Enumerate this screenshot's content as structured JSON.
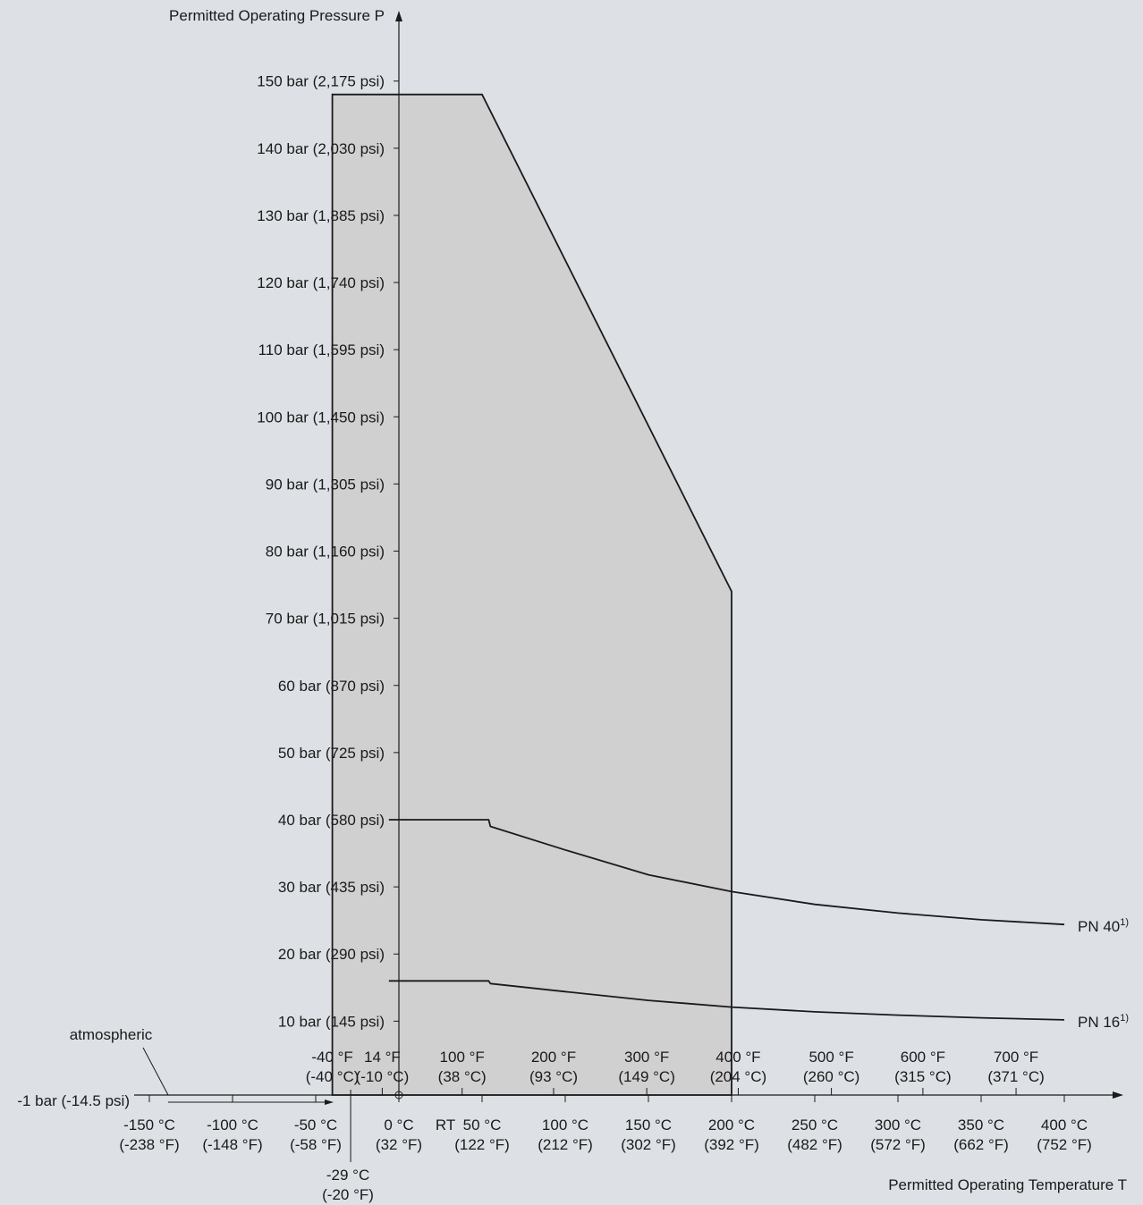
{
  "chart_data": {
    "type": "area",
    "title": "",
    "ylabel": "Permitted Operating Pressure P",
    "xlabel": "Permitted Operating Temperature T",
    "xlim": [
      -150,
      400
    ],
    "ylim": [
      -1,
      150
    ],
    "y_ticks": [
      {
        "value": 150,
        "label": "150 bar (2,175 psi)"
      },
      {
        "value": 140,
        "label": "140 bar (2,030 psi)"
      },
      {
        "value": 130,
        "label": "130 bar (1,885 psi)"
      },
      {
        "value": 120,
        "label": "120 bar (1,740 psi)"
      },
      {
        "value": 110,
        "label": "110 bar (1,595 psi)"
      },
      {
        "value": 100,
        "label": "100 bar (1,450 psi)"
      },
      {
        "value": 90,
        "label": "90 bar (1,305 psi)"
      },
      {
        "value": 80,
        "label": "80 bar (1,160 psi)"
      },
      {
        "value": 70,
        "label": "70 bar (1,015 psi)"
      },
      {
        "value": 60,
        "label": "60 bar (870 psi)"
      },
      {
        "value": 50,
        "label": "50 bar (725 psi)"
      },
      {
        "value": 40,
        "label": "40 bar (580 psi)"
      },
      {
        "value": 30,
        "label": "30 bar (435 psi)"
      },
      {
        "value": 20,
        "label": "20 bar (290 psi)"
      },
      {
        "value": 10,
        "label": "10 bar (145 psi)"
      }
    ],
    "origin_label": "-1 bar (-14.5 psi)",
    "atmospheric_label": "atmospheric",
    "x_ticks_celsius": [
      {
        "value": -150,
        "line1": "-150 °C",
        "line2": "(-238 °F)"
      },
      {
        "value": -100,
        "line1": "-100 °C",
        "line2": "(-148 °F)"
      },
      {
        "value": -50,
        "line1": "-50 °C",
        "line2": "(-58 °F)"
      },
      {
        "value": 0,
        "line1": "0 °C",
        "line2": "(32 °F)"
      },
      {
        "value": 50,
        "line1": "50 °C",
        "line2": "(122 °F)"
      },
      {
        "value": 100,
        "line1": "100 °C",
        "line2": "(212 °F)"
      },
      {
        "value": 150,
        "line1": "150 °C",
        "line2": "(302 °F)"
      },
      {
        "value": 200,
        "line1": "200 °C",
        "line2": "(392 °F)"
      },
      {
        "value": 250,
        "line1": "250 °C",
        "line2": "(482 °F)"
      },
      {
        "value": 300,
        "line1": "300 °C",
        "line2": "(572 °F)"
      },
      {
        "value": 350,
        "line1": "350 °C",
        "line2": "(662 °F)"
      },
      {
        "value": 400,
        "line1": "400 °C",
        "line2": "(752 °F)"
      }
    ],
    "rt_label": {
      "value": 28,
      "text": "RT"
    },
    "x_ticks_fahrenheit": [
      {
        "value": -40,
        "line1": "-40 °F",
        "line2": "(-40 °C)"
      },
      {
        "value": -10,
        "line1": "14 °F",
        "line2": "(-10 °C)"
      },
      {
        "value": 38,
        "line1": "100 °F",
        "line2": "(38 °C)"
      },
      {
        "value": 93,
        "line1": "200 °F",
        "line2": "(93 °C)"
      },
      {
        "value": 149,
        "line1": "300 °F",
        "line2": "(149 °C)"
      },
      {
        "value": 204,
        "line1": "400 °F",
        "line2": "(204 °C)"
      },
      {
        "value": 260,
        "line1": "500 °F",
        "line2": "(260 °C)"
      },
      {
        "value": 315,
        "line1": "600 °F",
        "line2": "(315 °C)"
      },
      {
        "value": 371,
        "line1": "700 °F",
        "line2": "(371 °C)"
      }
    ],
    "min_temp_marker": {
      "value": -29,
      "line1": "-29 °C",
      "line2": "(-20 °F)"
    },
    "permitted_area": {
      "x": [
        -40,
        -40,
        50,
        200,
        200
      ],
      "y": [
        -1,
        148,
        148,
        74,
        -1
      ]
    },
    "series": [
      {
        "name": "PN 40",
        "superscript": "1)",
        "x": [
          -6,
          0,
          54,
          55,
          100,
          150,
          200,
          250,
          300,
          350,
          400
        ],
        "y": [
          40,
          40,
          40,
          39,
          35.5,
          31.8,
          29.3,
          27.4,
          26.1,
          25.1,
          24.4
        ]
      },
      {
        "name": "PN 16",
        "superscript": "1)",
        "x": [
          -6,
          0,
          54,
          55,
          100,
          150,
          200,
          250,
          300,
          350,
          400
        ],
        "y": [
          16,
          16,
          16,
          15.6,
          14.4,
          13.1,
          12.1,
          11.4,
          10.9,
          10.5,
          10.2
        ]
      }
    ]
  }
}
